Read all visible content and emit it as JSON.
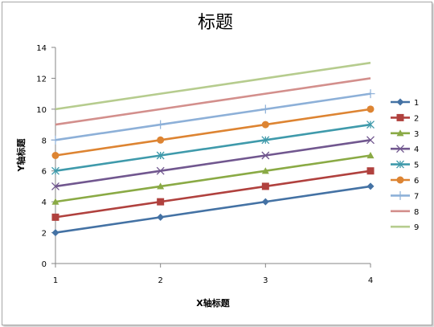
{
  "chart_data": {
    "type": "line",
    "title": "标题",
    "xlabel": "X轴标题",
    "ylabel": "Y轴标题",
    "categories": [
      "1",
      "2",
      "3",
      "4"
    ],
    "ylim": [
      0,
      14
    ],
    "yticks": [
      0,
      2,
      4,
      6,
      8,
      10,
      12,
      14
    ],
    "grid": false,
    "legend_position": "right",
    "series": [
      {
        "name": "1",
        "values": [
          2,
          3,
          4,
          5
        ],
        "color": "#4472a4",
        "marker": "diamond"
      },
      {
        "name": "2",
        "values": [
          3,
          4,
          5,
          6
        ],
        "color": "#b0413e",
        "marker": "square"
      },
      {
        "name": "3",
        "values": [
          4,
          5,
          6,
          7
        ],
        "color": "#8aaa45",
        "marker": "triangle"
      },
      {
        "name": "4",
        "values": [
          5,
          6,
          7,
          8
        ],
        "color": "#71578f",
        "marker": "x"
      },
      {
        "name": "5",
        "values": [
          6,
          7,
          8,
          9
        ],
        "color": "#3f9aab",
        "marker": "star"
      },
      {
        "name": "6",
        "values": [
          7,
          8,
          9,
          10
        ],
        "color": "#dd8432",
        "marker": "circle"
      },
      {
        "name": "7",
        "values": [
          8,
          9,
          10,
          11
        ],
        "color": "#8db0d8",
        "marker": "plus"
      },
      {
        "name": "8",
        "values": [
          9,
          10,
          11,
          12
        ],
        "color": "#d38f8c",
        "marker": "none"
      },
      {
        "name": "9",
        "values": [
          10,
          11,
          12,
          13
        ],
        "color": "#b6cc8e",
        "marker": "none"
      }
    ]
  }
}
